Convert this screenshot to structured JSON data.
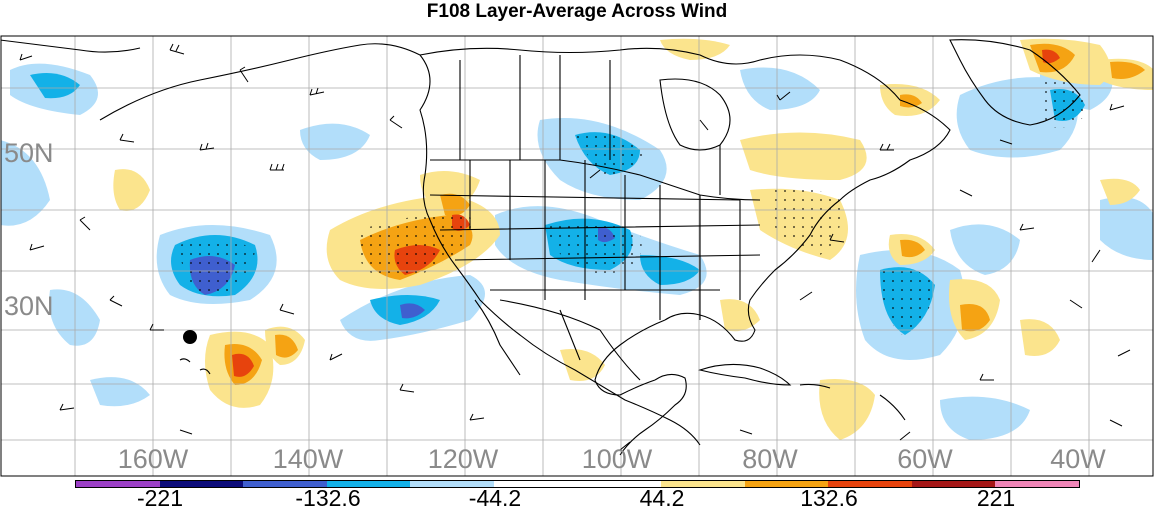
{
  "title": "F108 Layer-Average Across Wind",
  "map": {
    "region": "North Pacific / North America / Western Atlantic",
    "projection": "cylindrical-equidistant",
    "graticule_color": "#aaaaaa",
    "border_color": "#000000",
    "lat_labels": [
      "50N",
      "30N"
    ],
    "lon_labels": [
      "160W",
      "140W",
      "120W",
      "100W",
      "80W",
      "60W",
      "40W"
    ],
    "label_color": "#8a8a8a",
    "marker": "filled-circle-icon"
  },
  "shading": {
    "colors": {
      "neg_4": "#9b3fc6",
      "neg_3": "#0c0c7a",
      "neg_2": "#3f5fcf",
      "neg_1": "#13b1e8",
      "neg_0": "#b2defa",
      "zero": "#ffffff",
      "pos_0": "#fbe48d",
      "pos_1": "#f5a313",
      "pos_2": "#e7430d",
      "pos_3": "#a51717",
      "pos_4": "#f086b8"
    }
  },
  "colorbar": {
    "colors": [
      "#9b3fc6",
      "#0c0c7a",
      "#3f5fcf",
      "#13b1e8",
      "#b2defa",
      "#ffffff",
      "#ffffff",
      "#fbe48d",
      "#f5a313",
      "#e7430d",
      "#a51717",
      "#f086b8"
    ],
    "labels": [
      "-221",
      "-132.6",
      "-44.2",
      "44.2",
      "132.6",
      "221"
    ]
  }
}
